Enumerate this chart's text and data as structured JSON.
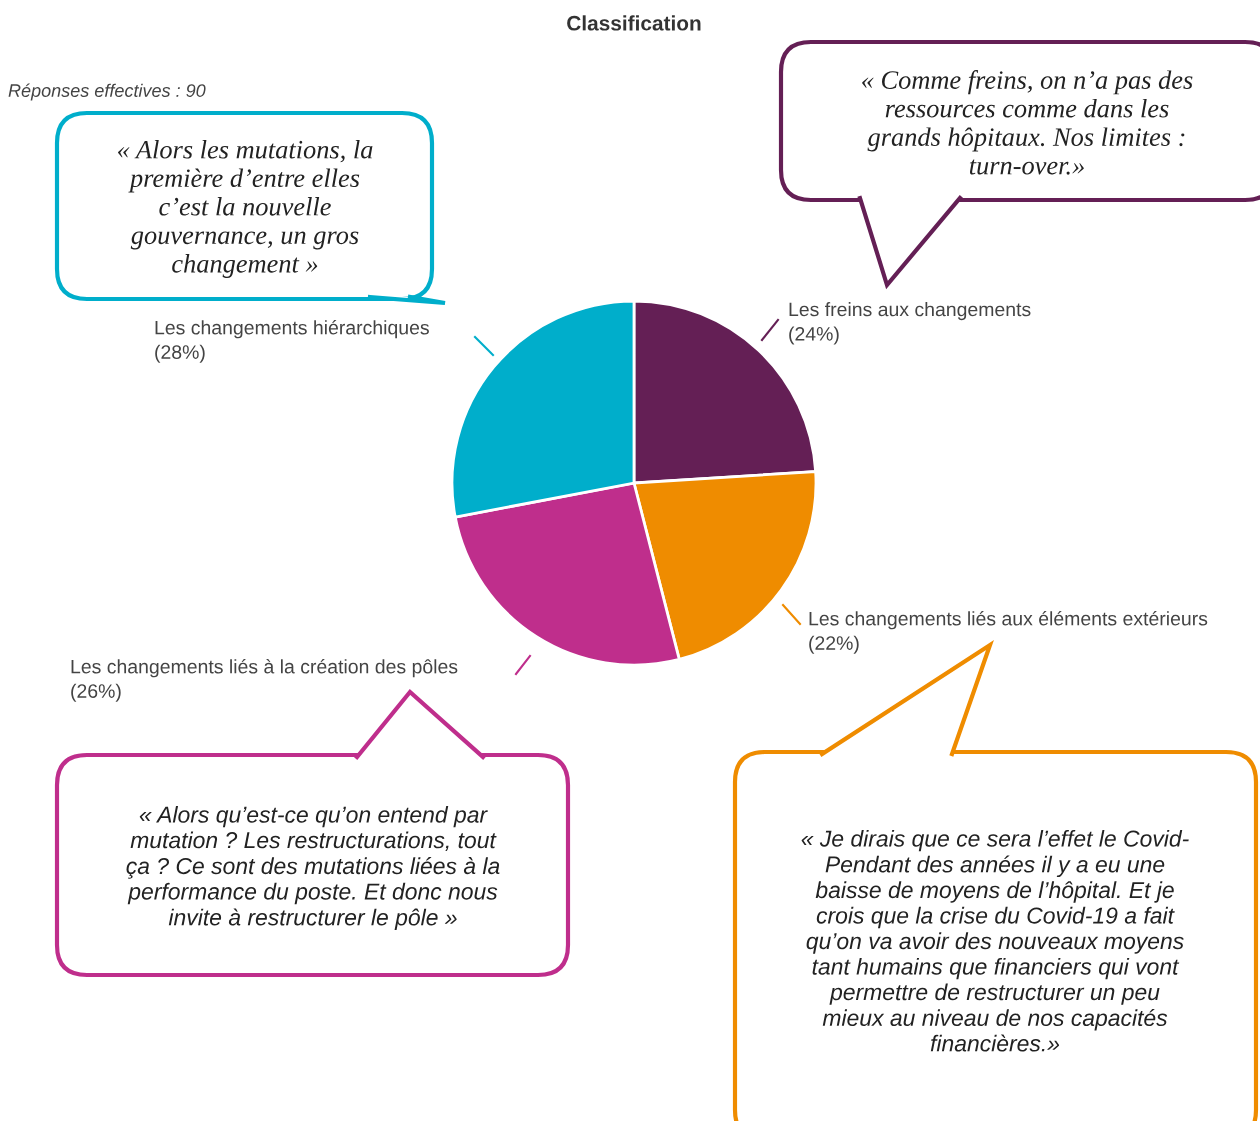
{
  "chart_data": {
    "type": "pie",
    "title": "Classification",
    "categories": [
      "Les freins aux changements",
      "Les changements liés aux éléments extérieurs",
      "Les changements liés à la création des pôles",
      "Les changements hiérarchiques"
    ],
    "values": [
      24,
      22,
      26,
      28
    ],
    "colors": [
      "#641f55",
      "#ef8c00",
      "#bf2e8c",
      "#00aecb"
    ],
    "value_labels": [
      "(24%)",
      "(22%)",
      "(26%)",
      "(28%)"
    ],
    "annotations": [
      "Réponses effectives : 90",
      "« Alors les mutations, la\npremière d’entre elles\nc’est la nouvelle\ngouvernance, un gros\nchangement »",
      "« Comme freins, on n’a pas des\nressources comme dans les\ngrands hôpitaux. Nos limites :\nturn-over.»",
      "« Alors qu’est-ce qu’on entend par\nmutation ? Les restructurations, tout\nça ? Ce sont des mutations liées à la\nperformance du poste. Et donc nous\ninvite à restructurer le pôle »",
      "« Je dirais que ce sera l’effet le Covid-\nPendant des années il y a eu une\nbaisse de moyens de l’hôpital. Et je\ncrois que la crise du Covid-19 a fait\nqu’on va avoir des nouveaux moyens\ntant humains que financiers qui vont\npermettre de restructurer un peu\nmieux au niveau de nos capacités\nfinancières.»"
    ]
  }
}
